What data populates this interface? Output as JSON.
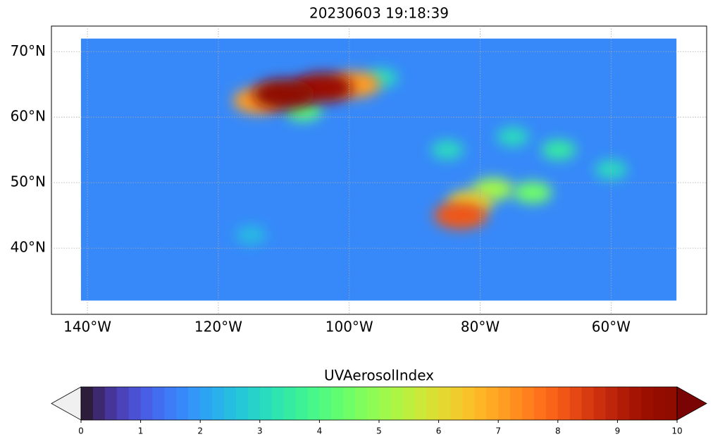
{
  "chart_data": {
    "type": "heatmap",
    "title": "20230603 19:18:39",
    "xlim": [
      -145.5,
      -45.4
    ],
    "ylim": [
      29.9,
      73.9
    ],
    "xticks": [
      {
        "value": -140,
        "label": "140°W"
      },
      {
        "value": -120,
        "label": "120°W"
      },
      {
        "value": -100,
        "label": "100°W"
      },
      {
        "value": -80,
        "label": "80°W"
      },
      {
        "value": -60,
        "label": "60°W"
      }
    ],
    "yticks": [
      {
        "value": 40,
        "label": "40°N"
      },
      {
        "value": 50,
        "label": "50°N"
      },
      {
        "value": 60,
        "label": "60°N"
      },
      {
        "value": 70,
        "label": "70°N"
      }
    ],
    "grid": true,
    "extent": [
      -141,
      -50,
      32,
      72
    ],
    "base": 1.6,
    "x": [
      -110,
      -104,
      -99,
      -114,
      -107,
      -83,
      -81.5,
      -78,
      -72,
      -68,
      -85,
      -95,
      -115,
      -60,
      -75
    ],
    "y": [
      63.5,
      64.5,
      65,
      62.5,
      61,
      45,
      47,
      49,
      48.5,
      55,
      55,
      66,
      42,
      52,
      57
    ],
    "values": [
      10,
      9.5,
      7,
      7,
      4,
      8,
      6,
      5,
      4.5,
      3.5,
      3,
      3,
      2.5,
      3,
      3
    ],
    "colorbar": {
      "label": "UVAerosolIndex",
      "lim": [
        0,
        10
      ],
      "ticks": [
        0,
        1,
        2,
        3,
        4,
        5,
        6,
        7,
        8,
        9,
        10
      ],
      "levels": 50,
      "under": "#f0f0f0",
      "over": "#7a0403"
    }
  }
}
